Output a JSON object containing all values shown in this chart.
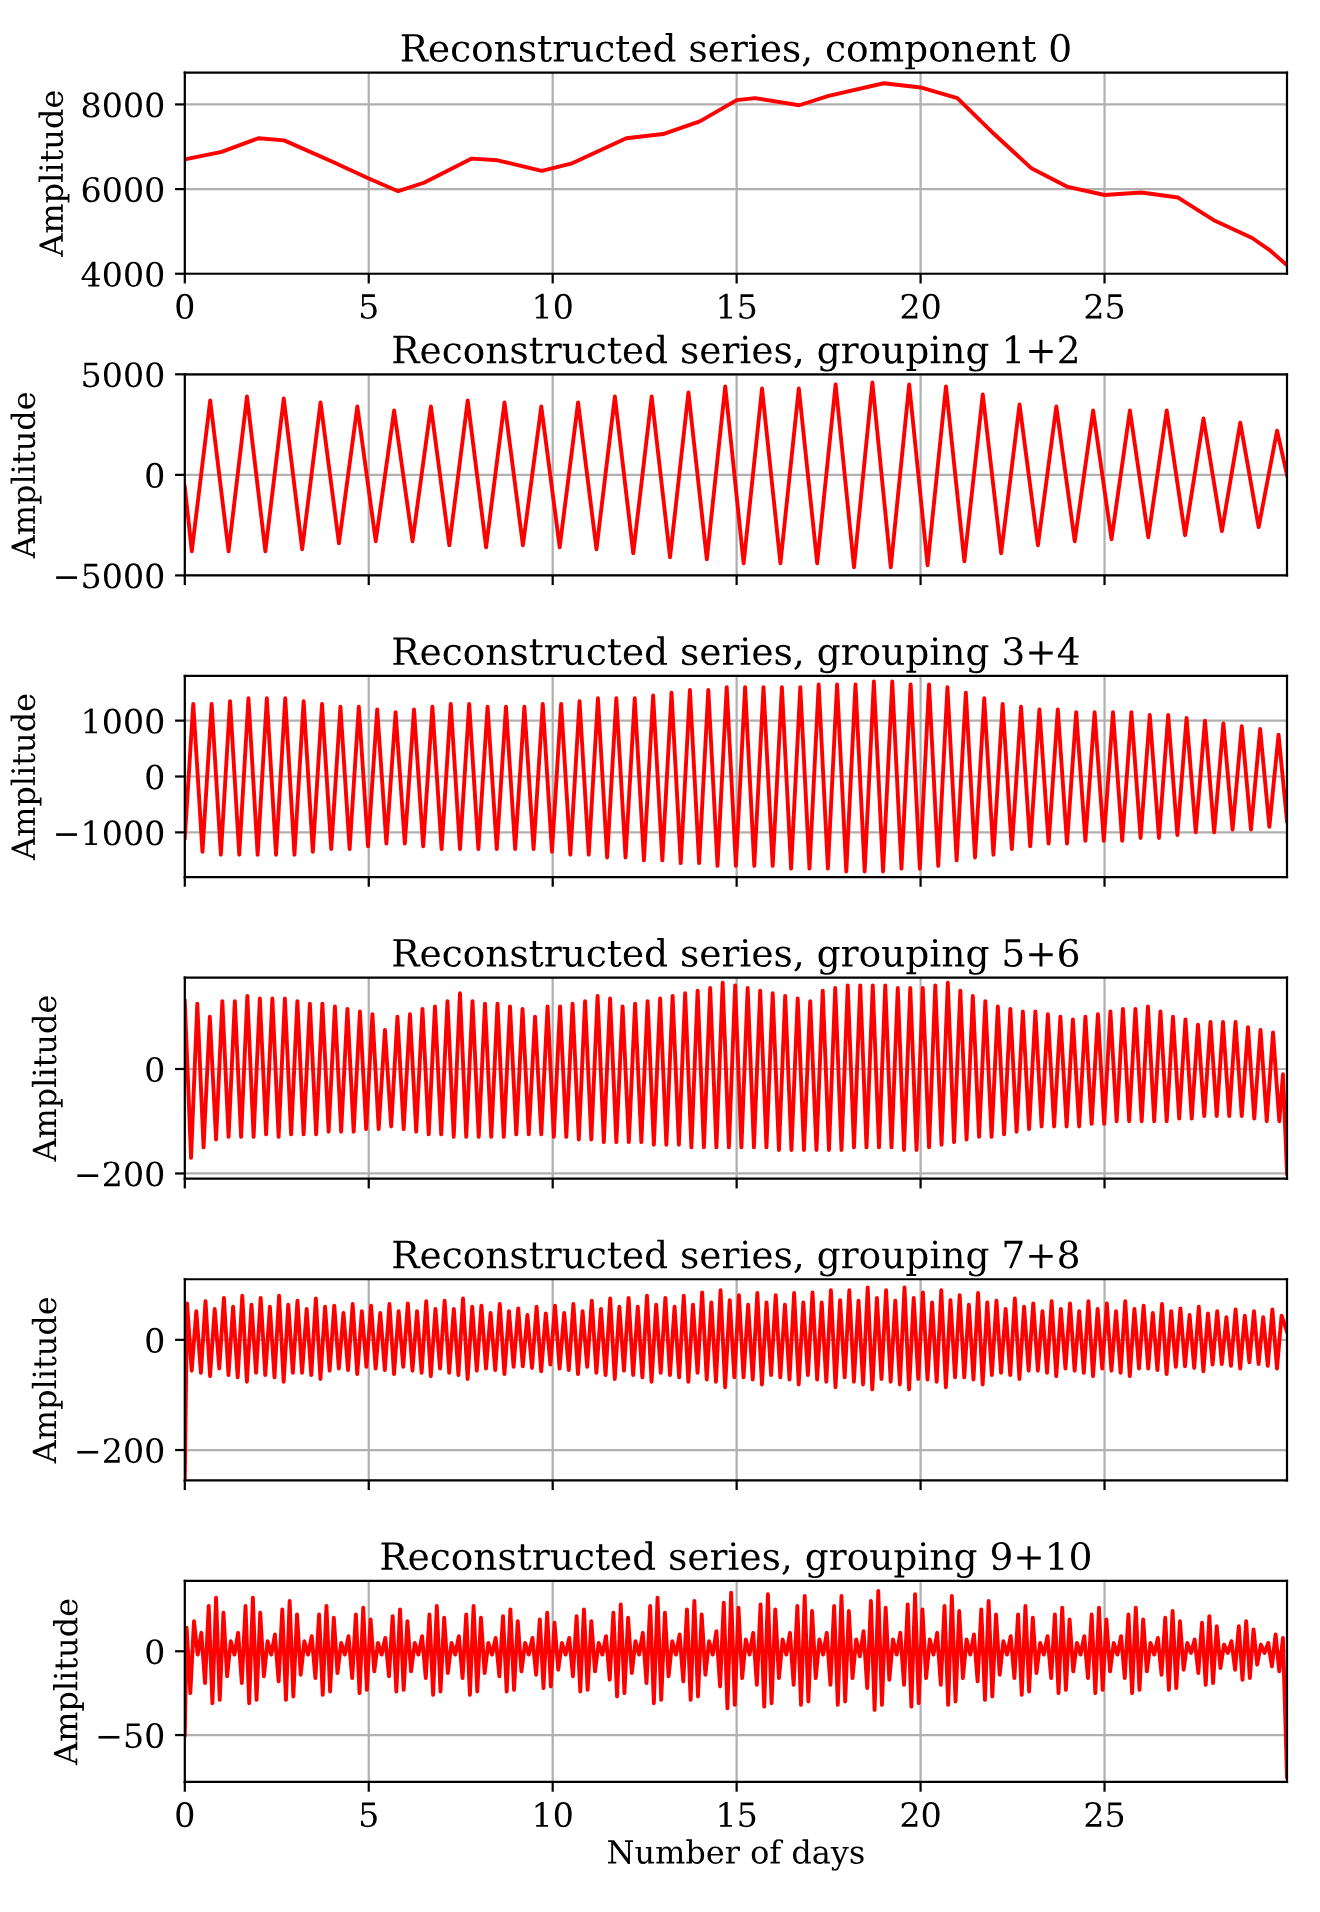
{
  "chart_data": [
    {
      "type": "line",
      "title": "Reconstructed series, component 0",
      "ylabel": "Amplitude",
      "xlim": [
        0,
        29.96
      ],
      "ylim": [
        4000,
        8750
      ],
      "xticks": [
        0,
        5,
        10,
        15,
        20,
        25
      ],
      "yticks": [
        4000,
        6000,
        8000
      ],
      "grid": true,
      "x": [
        0,
        1,
        2,
        2.7,
        4,
        5,
        5.8,
        6.5,
        7.8,
        8.5,
        9.7,
        10.5,
        12,
        13,
        14,
        15,
        15.5,
        16.7,
        17.5,
        19,
        20,
        21,
        22,
        23,
        24,
        25,
        26,
        27,
        28,
        29,
        29.5,
        29.96
      ],
      "series": [
        {
          "color": "#ff0000",
          "values": [
            6700,
            6880,
            7200,
            7150,
            6650,
            6250,
            5950,
            6150,
            6720,
            6680,
            6430,
            6600,
            7200,
            7300,
            7600,
            8100,
            8150,
            7980,
            8200,
            8500,
            8400,
            8150,
            7300,
            6500,
            6050,
            5860,
            5920,
            5800,
            5250,
            4850,
            4550,
            4200
          ]
        }
      ]
    },
    {
      "type": "line",
      "title": "Reconstructed series, grouping 1+2",
      "ylabel": "Amplitude",
      "xlim": [
        0,
        29.96
      ],
      "ylim": [
        -5000,
        5000
      ],
      "xticks": [
        0,
        5,
        10,
        15,
        20,
        25
      ],
      "yticks": [
        {
          "value": -5000,
          "label": "−5000"
        },
        0,
        5000
      ],
      "grid": true,
      "tick_labels": "y",
      "x": [
        0,
        0.19,
        0.69,
        1.19,
        1.69,
        2.19,
        2.69,
        3.19,
        3.69,
        4.19,
        4.69,
        5.19,
        5.69,
        6.19,
        6.69,
        7.19,
        7.69,
        8.19,
        8.69,
        9.19,
        9.69,
        10.19,
        10.69,
        11.19,
        11.69,
        12.19,
        12.69,
        13.19,
        13.69,
        14.19,
        14.69,
        15.19,
        15.69,
        16.19,
        16.69,
        17.19,
        17.69,
        18.19,
        18.69,
        19.19,
        19.69,
        20.19,
        20.69,
        21.19,
        21.69,
        22.19,
        22.69,
        23.19,
        23.69,
        24.19,
        24.69,
        25.19,
        25.69,
        26.19,
        26.69,
        27.19,
        27.69,
        28.19,
        28.69,
        29.19,
        29.69,
        29.96
      ],
      "series": [
        {
          "color": "#ff0000",
          "values": [
            -600,
            -3800,
            3700,
            -3800,
            3900,
            -3800,
            3800,
            -3700,
            3600,
            -3400,
            3400,
            -3300,
            3200,
            -3300,
            3400,
            -3500,
            3700,
            -3600,
            3600,
            -3500,
            3400,
            -3600,
            3600,
            -3700,
            3900,
            -3900,
            3900,
            -4100,
            4100,
            -4200,
            4400,
            -4400,
            4300,
            -4400,
            4300,
            -4400,
            4500,
            -4600,
            4600,
            -4600,
            4500,
            -4500,
            4400,
            -4300,
            4000,
            -3900,
            3500,
            -3500,
            3400,
            -3300,
            3200,
            -3200,
            3200,
            -3100,
            3200,
            -3000,
            2800,
            -2800,
            2600,
            -2600,
            2200,
            0
          ]
        }
      ]
    },
    {
      "type": "line",
      "title": "Reconstructed series, grouping 3+4",
      "ylabel": "Amplitude",
      "xlim": [
        0,
        29.96
      ],
      "ylim": [
        -1800,
        1800
      ],
      "xticks": [
        0,
        5,
        10,
        15,
        20,
        25
      ],
      "yticks": [
        {
          "value": -1000,
          "label": "−1000"
        },
        0,
        1000
      ],
      "grid": true,
      "tick_labels": "y",
      "x": [
        0,
        0.23,
        0.48,
        0.73,
        0.98,
        1.23,
        1.48,
        1.73,
        1.98,
        2.23,
        2.48,
        2.73,
        2.98,
        3.23,
        3.48,
        3.73,
        3.98,
        4.23,
        4.48,
        4.73,
        4.98,
        5.23,
        5.48,
        5.73,
        5.98,
        6.23,
        6.48,
        6.73,
        6.98,
        7.23,
        7.48,
        7.73,
        7.98,
        8.23,
        8.48,
        8.73,
        8.98,
        9.23,
        9.48,
        9.73,
        9.98,
        10.23,
        10.48,
        10.73,
        10.98,
        11.23,
        11.48,
        11.73,
        11.98,
        12.23,
        12.48,
        12.73,
        12.98,
        13.23,
        13.48,
        13.73,
        13.98,
        14.23,
        14.48,
        14.73,
        14.98,
        15.23,
        15.48,
        15.73,
        15.98,
        16.23,
        16.48,
        16.73,
        16.98,
        17.23,
        17.48,
        17.73,
        17.98,
        18.23,
        18.48,
        18.73,
        18.98,
        19.23,
        19.48,
        19.73,
        19.98,
        20.23,
        20.48,
        20.73,
        20.98,
        21.23,
        21.48,
        21.73,
        21.98,
        22.23,
        22.48,
        22.73,
        22.98,
        23.23,
        23.48,
        23.73,
        23.98,
        24.23,
        24.48,
        24.73,
        24.98,
        25.23,
        25.48,
        25.73,
        25.98,
        26.23,
        26.48,
        26.73,
        26.98,
        27.23,
        27.48,
        27.73,
        27.98,
        28.23,
        28.48,
        28.73,
        28.98,
        29.23,
        29.48,
        29.73,
        29.96
      ],
      "series": [
        {
          "color": "#ff0000",
          "values": [
            -1100,
            1300,
            -1350,
            1300,
            -1400,
            1350,
            -1400,
            1400,
            -1400,
            1400,
            -1400,
            1400,
            -1400,
            1350,
            -1350,
            1300,
            -1300,
            1250,
            -1300,
            1250,
            -1250,
            1200,
            -1200,
            1150,
            -1200,
            1200,
            -1250,
            1250,
            -1300,
            1300,
            -1300,
            1300,
            -1300,
            1250,
            -1300,
            1250,
            -1300,
            1250,
            -1300,
            1300,
            -1350,
            1300,
            -1400,
            1350,
            -1400,
            1400,
            -1450,
            1400,
            -1450,
            1400,
            -1500,
            1450,
            -1500,
            1500,
            -1550,
            1550,
            -1550,
            1550,
            -1600,
            1600,
            -1600,
            1600,
            -1600,
            1600,
            -1600,
            1600,
            -1650,
            1600,
            -1650,
            1650,
            -1650,
            1650,
            -1700,
            1650,
            -1700,
            1700,
            -1700,
            1700,
            -1650,
            1650,
            -1650,
            1650,
            -1600,
            1600,
            -1500,
            1500,
            -1450,
            1400,
            -1400,
            1300,
            -1300,
            1250,
            -1250,
            1200,
            -1200,
            1200,
            -1200,
            1150,
            -1150,
            1150,
            -1150,
            1150,
            -1150,
            1150,
            -1100,
            1100,
            -1100,
            1100,
            -1050,
            1050,
            -1000,
            1000,
            -1000,
            950,
            -950,
            900,
            -950,
            850,
            -900,
            750,
            -800
          ]
        }
      ]
    },
    {
      "type": "line",
      "title": "Reconstructed series, grouping 5+6",
      "ylabel": "Amplitude",
      "xlim": [
        0,
        29.96
      ],
      "ylim": [
        -210,
        175
      ],
      "xticks": [
        0,
        5,
        10,
        15,
        20,
        25
      ],
      "yticks": [
        {
          "value": -200,
          "label": "−200"
        },
        0
      ],
      "grid": true,
      "tick_labels": "y",
      "x": [
        0,
        0.17,
        0.34,
        0.51,
        0.68,
        0.85,
        1.02,
        1.19,
        1.36,
        1.53,
        1.7,
        1.87,
        2.04,
        2.21,
        2.38,
        2.55,
        2.72,
        2.89,
        3.06,
        3.23,
        3.4,
        3.57,
        3.74,
        3.91,
        4.08,
        4.25,
        4.42,
        4.59,
        4.76,
        4.93,
        5.1,
        5.27,
        5.44,
        5.61,
        5.78,
        5.95,
        6.12,
        6.29,
        6.46,
        6.63,
        6.8,
        6.97,
        7.14,
        7.31,
        7.48,
        7.65,
        7.82,
        7.99,
        8.16,
        8.33,
        8.5,
        8.67,
        8.84,
        9.01,
        9.18,
        9.35,
        9.52,
        9.69,
        9.86,
        10.03,
        10.2,
        10.37,
        10.54,
        10.71,
        10.88,
        11.05,
        11.22,
        11.39,
        11.56,
        11.73,
        11.9,
        12.07,
        12.24,
        12.41,
        12.58,
        12.75,
        12.92,
        13.09,
        13.26,
        13.43,
        13.6,
        13.77,
        13.94,
        14.11,
        14.28,
        14.45,
        14.62,
        14.79,
        14.96,
        15.13,
        15.3,
        15.47,
        15.64,
        15.81,
        15.98,
        16.15,
        16.32,
        16.49,
        16.66,
        16.83,
        17.0,
        17.17,
        17.34,
        17.51,
        17.68,
        17.85,
        18.02,
        18.19,
        18.36,
        18.53,
        18.7,
        18.87,
        19.04,
        19.21,
        19.38,
        19.55,
        19.72,
        19.89,
        20.06,
        20.23,
        20.4,
        20.57,
        20.74,
        20.91,
        21.08,
        21.25,
        21.42,
        21.59,
        21.76,
        21.93,
        22.1,
        22.27,
        22.44,
        22.61,
        22.78,
        22.95,
        23.12,
        23.29,
        23.46,
        23.63,
        23.8,
        23.97,
        24.14,
        24.31,
        24.48,
        24.65,
        24.82,
        24.99,
        25.16,
        25.33,
        25.5,
        25.67,
        25.84,
        26.01,
        26.18,
        26.35,
        26.52,
        26.69,
        26.86,
        27.03,
        27.2,
        27.37,
        27.54,
        27.71,
        27.88,
        28.05,
        28.22,
        28.39,
        28.56,
        28.73,
        28.9,
        29.07,
        29.24,
        29.41,
        29.58,
        29.75,
        29.85,
        29.96
      ],
      "series": [
        {
          "color": "#ff0000",
          "values": [
            130,
            -170,
            125,
            -150,
            100,
            -135,
            130,
            -130,
            130,
            -130,
            140,
            -130,
            135,
            -125,
            135,
            -130,
            135,
            -125,
            130,
            -125,
            125,
            -125,
            125,
            -120,
            120,
            -120,
            115,
            -120,
            110,
            -115,
            105,
            -115,
            75,
            -110,
            100,
            -115,
            105,
            -120,
            115,
            -125,
            120,
            -125,
            130,
            -130,
            145,
            -130,
            130,
            -130,
            125,
            -130,
            125,
            -130,
            120,
            -125,
            115,
            -125,
            100,
            -125,
            120,
            -130,
            120,
            -130,
            125,
            -135,
            130,
            -135,
            140,
            -140,
            135,
            -140,
            120,
            -140,
            125,
            -140,
            130,
            -145,
            135,
            -145,
            140,
            -145,
            145,
            -150,
            150,
            -150,
            155,
            -150,
            165,
            -150,
            160,
            -150,
            155,
            -150,
            150,
            -150,
            145,
            -155,
            140,
            -155,
            135,
            -155,
            130,
            -155,
            150,
            -155,
            155,
            -155,
            160,
            -150,
            160,
            -150,
            160,
            -150,
            160,
            -150,
            155,
            -155,
            155,
            -155,
            155,
            -150,
            160,
            -145,
            165,
            -140,
            150,
            -135,
            140,
            -130,
            130,
            -130,
            120,
            -125,
            115,
            -120,
            110,
            -115,
            110,
            -110,
            105,
            -110,
            100,
            -110,
            95,
            -110,
            100,
            -105,
            105,
            -105,
            110,
            -100,
            115,
            -100,
            115,
            -100,
            120,
            -100,
            110,
            -100,
            100,
            -95,
            95,
            -95,
            85,
            -90,
            90,
            -90,
            90,
            -90,
            90,
            -90,
            80,
            -95,
            75,
            -100,
            70,
            -100,
            -10,
            -200
          ]
        }
      ]
    },
    {
      "type": "line",
      "title": "Reconstructed series, grouping 7+8",
      "ylabel": "Amplitude",
      "xlim": [
        0,
        29.96
      ],
      "ylim": [
        -255,
        110
      ],
      "xticks": [
        0,
        5,
        10,
        15,
        20,
        25
      ],
      "yticks": [
        {
          "value": -200,
          "label": "−200"
        },
        0
      ],
      "grid": true,
      "tick_labels": "y",
      "x": [
        0,
        0.0625,
        0.1875,
        0.3125,
        0.4375,
        0.5625,
        0.6875,
        0.8125,
        0.9375,
        1.0625,
        1.1875,
        1.3125,
        1.4375,
        1.5625,
        1.6875,
        1.8125,
        1.9375,
        2.0625,
        2.1875,
        2.3125,
        2.4375,
        2.5625,
        2.6875,
        2.8125,
        2.9375,
        3.0625,
        3.1875,
        3.3125,
        3.4375,
        3.5625,
        3.6875,
        3.8125,
        3.9375,
        4.0625,
        4.1875,
        4.3125,
        4.4375,
        4.5625,
        4.6875,
        4.8125,
        4.9375,
        5.0625,
        5.1875,
        5.3125,
        5.4375,
        5.5625,
        5.6875,
        5.8125,
        5.9375,
        6.0625,
        6.1875,
        6.3125,
        6.4375,
        6.5625,
        6.6875,
        6.8125,
        6.9375,
        7.0625,
        7.1875,
        7.3125,
        7.4375,
        7.5625,
        7.6875,
        7.8125,
        7.9375,
        8.0625,
        8.1875,
        8.3125,
        8.4375,
        8.5625,
        8.6875,
        8.8125,
        8.9375,
        9.0625,
        9.1875,
        9.3125,
        9.4375,
        9.5625,
        9.6875,
        9.8125,
        9.9375,
        10.0625,
        10.1875,
        10.3125,
        10.4375,
        10.5625,
        10.6875,
        10.8125,
        10.9375,
        11.0625,
        11.1875,
        11.3125,
        11.4375,
        11.5625,
        11.6875,
        11.8125,
        11.9375,
        12.0625,
        12.1875,
        12.3125,
        12.4375,
        12.5625,
        12.6875,
        12.8125,
        12.9375,
        13.0625,
        13.1875,
        13.3125,
        13.4375,
        13.5625,
        13.6875,
        13.8125,
        13.9375,
        14.0625,
        14.1875,
        14.3125,
        14.4375,
        14.5625,
        14.6875,
        14.8125,
        14.9375,
        15.0625,
        15.1875,
        15.3125,
        15.4375,
        15.5625,
        15.6875,
        15.8125,
        15.9375,
        16.0625,
        16.1875,
        16.3125,
        16.4375,
        16.5625,
        16.6875,
        16.8125,
        16.9375,
        17.0625,
        17.1875,
        17.3125,
        17.4375,
        17.5625,
        17.6875,
        17.8125,
        17.9375,
        18.0625,
        18.1875,
        18.3125,
        18.4375,
        18.5625,
        18.6875,
        18.8125,
        18.9375,
        19.0625,
        19.1875,
        19.3125,
        19.4375,
        19.5625,
        19.6875,
        19.8125,
        19.9375,
        20.0625,
        20.1875,
        20.3125,
        20.4375,
        20.5625,
        20.6875,
        20.8125,
        20.9375,
        21.0625,
        21.1875,
        21.3125,
        21.4375,
        21.5625,
        21.6875,
        21.8125,
        21.9375,
        22.0625,
        22.1875,
        22.3125,
        22.4375,
        22.5625,
        22.6875,
        22.8125,
        22.9375,
        23.0625,
        23.1875,
        23.3125,
        23.4375,
        23.5625,
        23.6875,
        23.8125,
        23.9375,
        24.0625,
        24.1875,
        24.3125,
        24.4375,
        24.5625,
        24.6875,
        24.8125,
        24.9375,
        25.0625,
        25.1875,
        25.3125,
        25.4375,
        25.5625,
        25.6875,
        25.8125,
        25.9375,
        26.0625,
        26.1875,
        26.3125,
        26.4375,
        26.5625,
        26.6875,
        26.8125,
        26.9375,
        27.0625,
        27.1875,
        27.3125,
        27.4375,
        27.5625,
        27.6875,
        27.8125,
        27.9375,
        28.0625,
        28.1875,
        28.3125,
        28.4375,
        28.5625,
        28.6875,
        28.8125,
        28.9375,
        29.0625,
        29.1875,
        29.3125,
        29.4375,
        29.5625,
        29.6875,
        29.8125,
        29.96
      ],
      "series": [
        {
          "color": "#ff0000",
          "values": [
            -250,
            66,
            -56,
            52,
            -60,
            70,
            -66,
            56,
            -52,
            76,
            -64,
            60,
            -68,
            80,
            -76,
            64,
            -60,
            76,
            -64,
            60,
            -68,
            80,
            -76,
            64,
            -60,
            71,
            -60,
            56,
            -64,
            75,
            -71,
            60,
            -56,
            62,
            -52,
            49,
            -55,
            65,
            -62,
            52,
            -49,
            62,
            -52,
            49,
            -55,
            65,
            -62,
            52,
            -49,
            66,
            -56,
            52,
            -60,
            70,
            -66,
            56,
            -52,
            71,
            -60,
            56,
            -64,
            75,
            -71,
            60,
            -56,
            62,
            -52,
            49,
            -55,
            65,
            -62,
            52,
            -49,
            57,
            -48,
            45,
            -51,
            60,
            -57,
            48,
            -45,
            62,
            -52,
            49,
            -55,
            65,
            -62,
            52,
            -49,
            71,
            -60,
            56,
            -64,
            75,
            -71,
            60,
            -56,
            76,
            -64,
            60,
            -68,
            80,
            -76,
            64,
            -60,
            76,
            -64,
            60,
            -68,
            80,
            -76,
            64,
            -60,
            86,
            -72,
            68,
            -76,
            90,
            -86,
            72,
            -68,
            81,
            -68,
            64,
            -72,
            85,
            -81,
            68,
            -64,
            81,
            -68,
            64,
            -72,
            85,
            -81,
            68,
            -64,
            86,
            -72,
            68,
            -76,
            90,
            -86,
            72,
            -68,
            90,
            -76,
            71,
            -81,
            95,
            -90,
            76,
            -71,
            90,
            -76,
            71,
            -81,
            95,
            -90,
            76,
            -71,
            86,
            -72,
            68,
            -76,
            90,
            -86,
            72,
            -68,
            81,
            -68,
            64,
            -72,
            85,
            -81,
            68,
            -64,
            71,
            -60,
            56,
            -64,
            75,
            -71,
            60,
            -56,
            66,
            -56,
            52,
            -60,
            70,
            -66,
            56,
            -52,
            66,
            -56,
            52,
            -60,
            70,
            -66,
            56,
            -52,
            66,
            -56,
            52,
            -60,
            70,
            -66,
            56,
            -52,
            62,
            -52,
            49,
            -55,
            65,
            -62,
            52,
            -49,
            57,
            -48,
            45,
            -51,
            60,
            -57,
            48,
            -45,
            52,
            -44,
            41,
            -47,
            55,
            -52,
            44,
            -41,
            52,
            -44,
            41,
            -47,
            55,
            -52,
            44,
            15
          ]
        }
      ]
    },
    {
      "type": "line",
      "title": "Reconstructed series, grouping 9+10",
      "ylabel": "Amplitude",
      "xlabel": "Number of days",
      "xlim": [
        0,
        29.96
      ],
      "ylim": [
        -78,
        42
      ],
      "xticks": [
        0,
        5,
        10,
        15,
        20,
        25
      ],
      "yticks": [
        {
          "value": -50,
          "label": "−50"
        },
        0
      ],
      "grid": true,
      "x": [
        0,
        0.05,
        0.15,
        0.25,
        0.35,
        0.45,
        0.55,
        0.65,
        0.75,
        0.85,
        0.95,
        1.05,
        1.15,
        1.25,
        1.35,
        1.45,
        1.55,
        1.65,
        1.75,
        1.85,
        1.95,
        2.05,
        2.15,
        2.25,
        2.35,
        2.45,
        2.55,
        2.65,
        2.75,
        2.85,
        2.95,
        3.05,
        3.15,
        3.25,
        3.35,
        3.45,
        3.55,
        3.65,
        3.75,
        3.85,
        3.95,
        4.05,
        4.15,
        4.25,
        4.35,
        4.45,
        4.55,
        4.65,
        4.75,
        4.85,
        4.95,
        5.05,
        5.15,
        5.25,
        5.35,
        5.45,
        5.55,
        5.65,
        5.75,
        5.85,
        5.95,
        6.05,
        6.15,
        6.25,
        6.35,
        6.45,
        6.55,
        6.65,
        6.75,
        6.85,
        6.95,
        7.05,
        7.15,
        7.25,
        7.35,
        7.45,
        7.55,
        7.65,
        7.75,
        7.85,
        7.95,
        8.05,
        8.15,
        8.25,
        8.35,
        8.45,
        8.55,
        8.65,
        8.75,
        8.85,
        8.95,
        9.05,
        9.15,
        9.25,
        9.35,
        9.45,
        9.55,
        9.65,
        9.75,
        9.85,
        9.95,
        10.05,
        10.15,
        10.25,
        10.35,
        10.45,
        10.55,
        10.65,
        10.75,
        10.85,
        10.95,
        11.05,
        11.15,
        11.25,
        11.35,
        11.45,
        11.55,
        11.65,
        11.75,
        11.85,
        11.95,
        12.05,
        12.15,
        12.25,
        12.35,
        12.45,
        12.55,
        12.65,
        12.75,
        12.85,
        12.95,
        13.05,
        13.15,
        13.25,
        13.35,
        13.45,
        13.55,
        13.65,
        13.75,
        13.85,
        13.95,
        14.05,
        14.15,
        14.25,
        14.35,
        14.45,
        14.55,
        14.65,
        14.75,
        14.85,
        14.95,
        15.05,
        15.15,
        15.25,
        15.35,
        15.45,
        15.55,
        15.65,
        15.75,
        15.85,
        15.95,
        16.05,
        16.15,
        16.25,
        16.35,
        16.45,
        16.55,
        16.65,
        16.75,
        16.85,
        16.95,
        17.05,
        17.15,
        17.25,
        17.35,
        17.45,
        17.55,
        17.65,
        17.75,
        17.85,
        17.95,
        18.05,
        18.15,
        18.25,
        18.35,
        18.45,
        18.55,
        18.65,
        18.75,
        18.85,
        18.95,
        19.05,
        19.15,
        19.25,
        19.35,
        19.45,
        19.55,
        19.65,
        19.75,
        19.85,
        19.95,
        20.05,
        20.15,
        20.25,
        20.35,
        20.45,
        20.55,
        20.65,
        20.75,
        20.85,
        20.95,
        21.05,
        21.15,
        21.25,
        21.35,
        21.45,
        21.55,
        21.65,
        21.75,
        21.85,
        21.95,
        22.05,
        22.15,
        22.25,
        22.35,
        22.45,
        22.55,
        22.65,
        22.75,
        22.85,
        22.95,
        23.05,
        23.15,
        23.25,
        23.35,
        23.45,
        23.55,
        23.65,
        23.75,
        23.85,
        23.95,
        24.05,
        24.15,
        24.25,
        24.35,
        24.45,
        24.55,
        24.65,
        24.75,
        24.85,
        24.95,
        25.05,
        25.15,
        25.25,
        25.35,
        25.45,
        25.55,
        25.65,
        25.75,
        25.85,
        25.95,
        26.05,
        26.15,
        26.25,
        26.35,
        26.45,
        26.55,
        26.65,
        26.75,
        26.85,
        26.95,
        27.05,
        27.15,
        27.25,
        27.35,
        27.45,
        27.55,
        27.65,
        27.75,
        27.85,
        27.95,
        28.05,
        28.15,
        28.25,
        28.35,
        28.45,
        28.55,
        28.65,
        28.75,
        28.85,
        28.95,
        29.05,
        29.15,
        29.25,
        29.35,
        29.45,
        29.55,
        29.65,
        29.75,
        29.85,
        29.96
      ],
      "series": [
        {
          "color": "#ff0000",
          "values": [
            -50,
            14,
            -25,
            18,
            -2,
            11,
            -19,
            27,
            -31,
            32,
            -29,
            23,
            -15,
            6,
            -2,
            11,
            -19,
            27,
            -31,
            32,
            -29,
            23,
            -15,
            6,
            -2,
            10,
            -18,
            25,
            -29,
            30,
            -27,
            22,
            -14,
            6,
            -2,
            9,
            -16,
            22,
            -26,
            27,
            -24,
            20,
            -13,
            5,
            -2,
            9,
            -16,
            22,
            -25,
            26,
            -23,
            19,
            -12,
            5,
            -2,
            8,
            -15,
            21,
            -24,
            25,
            -23,
            18,
            -12,
            5,
            -2,
            9,
            -16,
            22,
            -26,
            27,
            -24,
            20,
            -13,
            5,
            -2,
            9,
            -16,
            22,
            -26,
            27,
            -24,
            20,
            -13,
            5,
            -2,
            8,
            -15,
            21,
            -24,
            25,
            -23,
            18,
            -12,
            5,
            -2,
            8,
            -14,
            19,
            -22,
            23,
            -21,
            17,
            -11,
            5,
            -2,
            8,
            -15,
            21,
            -24,
            25,
            -23,
            18,
            -12,
            5,
            -2,
            9,
            -17,
            23,
            -27,
            28,
            -25,
            20,
            -13,
            6,
            -2,
            11,
            -19,
            27,
            -31,
            32,
            -29,
            23,
            -15,
            6,
            -2,
            10,
            -18,
            25,
            -29,
            30,
            -27,
            22,
            -14,
            6,
            -2,
            12,
            -21,
            29,
            -34,
            35,
            -32,
            26,
            -16,
            7,
            -2,
            11,
            -20,
            28,
            -33,
            34,
            -31,
            25,
            -16,
            7,
            -2,
            11,
            -20,
            27,
            -32,
            33,
            -30,
            24,
            -16,
            7,
            -2,
            11,
            -20,
            27,
            -32,
            33,
            -30,
            24,
            -16,
            7,
            -3,
            12,
            -22,
            30,
            -35,
            36,
            -32,
            26,
            -17,
            7,
            -2,
            11,
            -20,
            28,
            -33,
            34,
            -31,
            25,
            -16,
            7,
            -2,
            11,
            -20,
            27,
            -32,
            33,
            -30,
            24,
            -16,
            7,
            -2,
            10,
            -18,
            25,
            -29,
            30,
            -27,
            22,
            -14,
            6,
            -2,
            9,
            -16,
            22,
            -26,
            27,
            -24,
            20,
            -13,
            5,
            -2,
            9,
            -16,
            22,
            -25,
            26,
            -23,
            19,
            -12,
            5,
            -2,
            9,
            -16,
            22,
            -25,
            26,
            -23,
            19,
            -12,
            5,
            -2,
            9,
            -16,
            22,
            -25,
            26,
            -23,
            19,
            -12,
            5,
            -2,
            8,
            -14,
            20,
            -23,
            24,
            -22,
            18,
            -11,
            5,
            -1,
            7,
            -13,
            17,
            -20,
            21,
            -19,
            15,
            -10,
            4,
            -1,
            6,
            -11,
            15,
            -17,
            18,
            -16,
            13,
            -8,
            4,
            -1,
            5,
            -9,
            10,
            -12,
            8,
            -75
          ]
        }
      ]
    }
  ]
}
